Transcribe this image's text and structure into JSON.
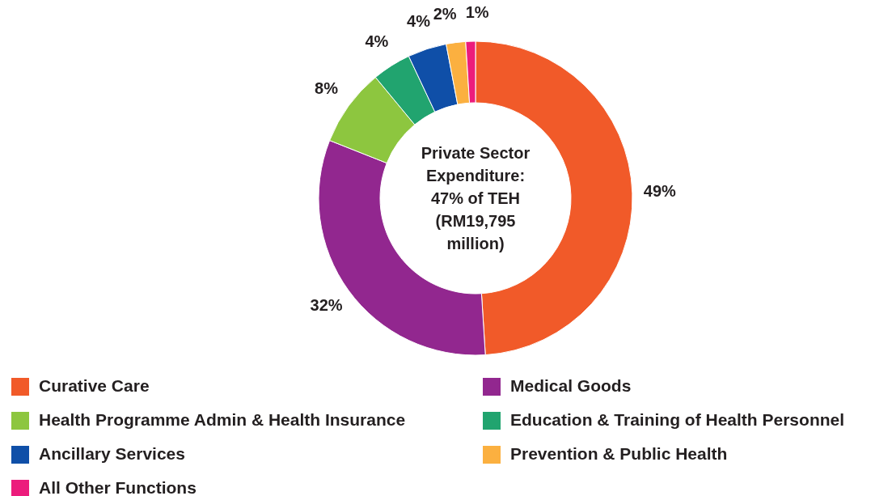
{
  "chart_data": {
    "type": "donut",
    "title": "Private Sector Expenditure: 47% of TEH (RM19,795 million)",
    "categories": [
      "Curative Care",
      "Medical Goods",
      "Health Programme Admin & Health Insurance",
      "Education & Training of Health Personnel",
      "Ancillary Services",
      "Prevention & Public Health",
      "All Other Functions"
    ],
    "values": [
      49,
      32,
      8,
      4,
      4,
      2,
      1
    ],
    "colors": [
      "#f15a29",
      "#92278f",
      "#8dc63f",
      "#21a46f",
      "#0f4fa8",
      "#fbb040",
      "#ec1c7c"
    ],
    "value_labels": [
      "49%",
      "32%",
      "8%",
      "4%",
      "4%",
      "2%",
      "1%"
    ],
    "legend": "bottom"
  }
}
